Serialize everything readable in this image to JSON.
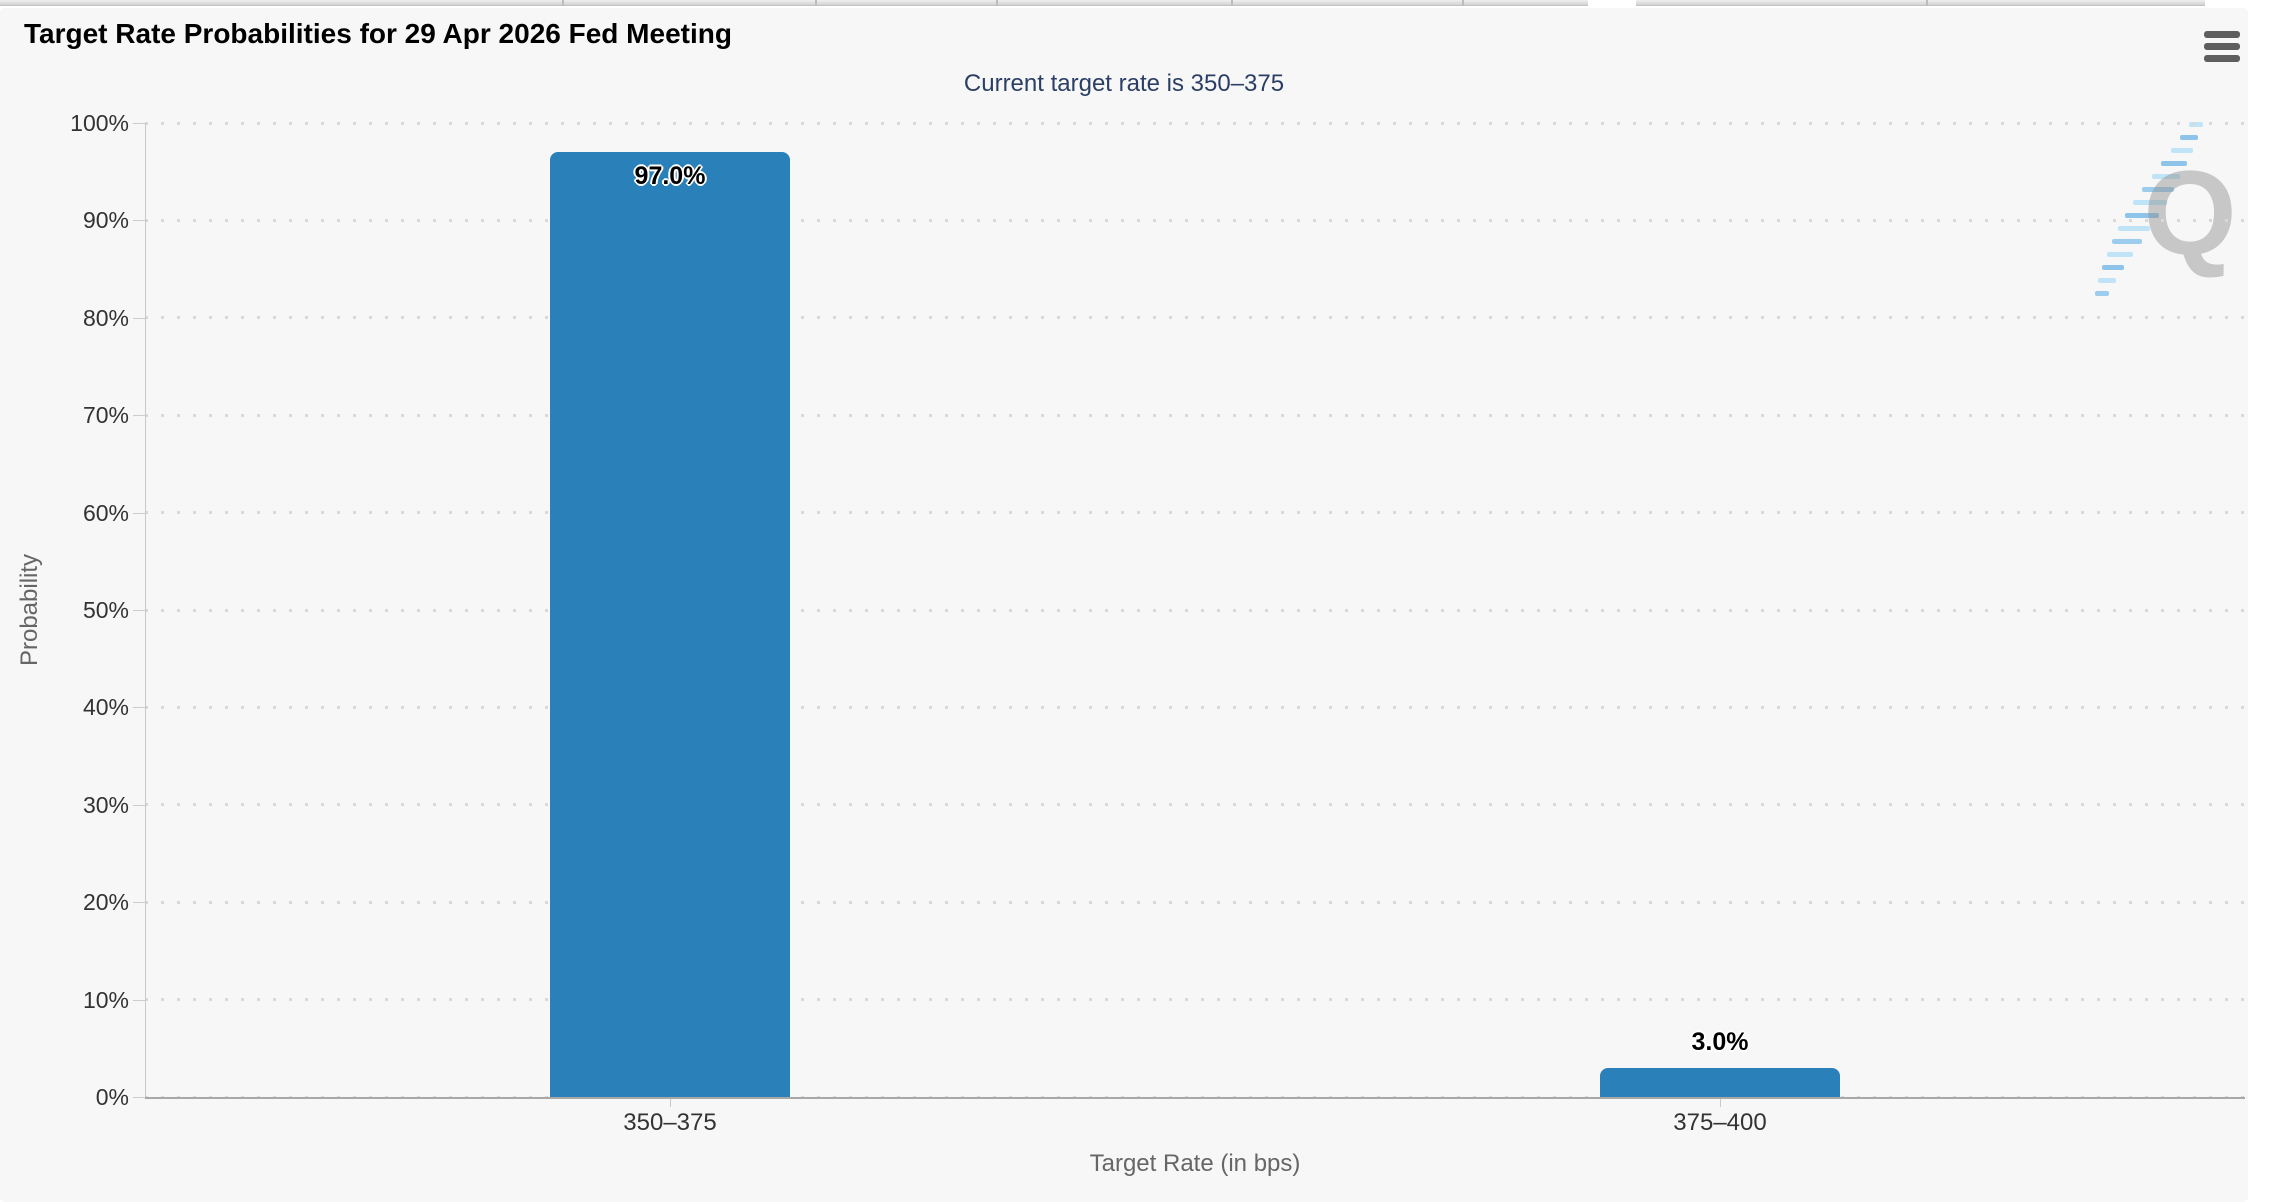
{
  "header": {
    "title": "Target Rate Probabilities for 29 Apr 2026 Fed Meeting",
    "menu_icon": "hamburger-icon"
  },
  "chart_data": {
    "type": "bar",
    "title": "Target Rate Probabilities for 29 Apr 2026 Fed Meeting",
    "subtitle": "Current target rate is 350–375",
    "categories": [
      "350–375",
      "375–400"
    ],
    "values": [
      97.0,
      3.0
    ],
    "data_labels": [
      "97.0%",
      "3.0%"
    ],
    "xlabel": "Target Rate (in bps)",
    "ylabel": "Probability",
    "ylim": [
      0,
      100
    ],
    "yticks": [
      0,
      10,
      20,
      30,
      40,
      50,
      60,
      70,
      80,
      90,
      100
    ],
    "ytick_labels": [
      "0%",
      "10%",
      "20%",
      "30%",
      "40%",
      "50%",
      "60%",
      "70%",
      "80%",
      "90%",
      "100%"
    ],
    "legend": "none",
    "grid": "horizontal-dotted",
    "bar_color": "#2A80B9",
    "watermark_letter": "Q"
  }
}
